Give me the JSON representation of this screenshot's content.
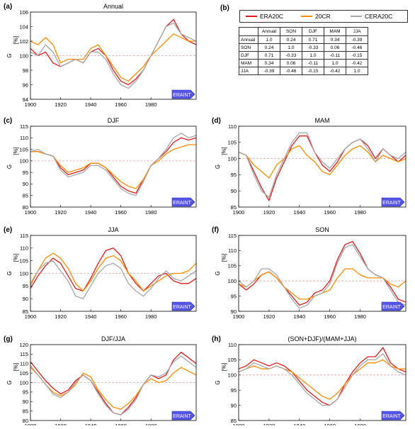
{
  "legend": {
    "items": [
      {
        "label": "ERA20C",
        "color": "#e31a1c"
      },
      {
        "label": "20CR",
        "color": "#ff8c00"
      },
      {
        "label": "CERA20C",
        "color": "#a6a6a6"
      }
    ]
  },
  "correlation_table": {
    "panel_label": "(b)",
    "columns": [
      "",
      "Annual",
      "SON",
      "DJF",
      "MAM",
      "JJA"
    ],
    "rows": [
      [
        "Annual",
        "1.0",
        "0.24",
        "0.71",
        "0.34",
        "-0.39"
      ],
      [
        "SON",
        "0.24",
        "1.0",
        "-0.33",
        "0.06",
        "-0.46"
      ],
      [
        "DJF",
        "0.71",
        "-0.33",
        "1.0",
        "-0.11",
        "-0.15"
      ],
      [
        "MAM",
        "0.34",
        "0.06",
        "-0.11",
        "1.0",
        "-0.42"
      ],
      [
        "JJA",
        "-0.39",
        "-0.46",
        "-0.15",
        "-0.42",
        "1.0"
      ]
    ]
  },
  "era_label": "ERAINT",
  "chart_data": [
    {
      "panel": "(a)",
      "type": "line",
      "title": "Annual",
      "ylabel_main": "G",
      "ylabel_note": "[%]",
      "ylim": [
        94,
        106
      ],
      "yticks": [
        94,
        96,
        98,
        100,
        102,
        104,
        106
      ],
      "xlim": [
        1900,
        2010
      ],
      "xticks": [
        1900,
        1920,
        1940,
        1960,
        1980
      ],
      "reference_line": 100,
      "x": [
        1900,
        1905,
        1910,
        1915,
        1920,
        1925,
        1930,
        1935,
        1940,
        1945,
        1950,
        1955,
        1960,
        1965,
        1970,
        1975,
        1980,
        1985,
        1990,
        1995,
        2000,
        2005,
        2010
      ],
      "series": [
        {
          "name": "ERA20C",
          "values": [
            101,
            100,
            100.5,
            99,
            98.5,
            99,
            99.5,
            99,
            100.5,
            101,
            100,
            98,
            96.5,
            96,
            96.8,
            98,
            100,
            102,
            104,
            105,
            103,
            102,
            101.5
          ]
        },
        {
          "name": "20CR",
          "values": [
            102,
            101.5,
            102.5,
            101.5,
            99,
            99.5,
            99.5,
            99.5,
            101,
            101.5,
            100,
            98.5,
            97,
            96.5,
            97.5,
            98.5,
            100,
            101,
            102,
            103,
            102.5,
            102,
            102
          ]
        },
        {
          "name": "CERA20C",
          "values": [
            100.5,
            100,
            101.5,
            100.5,
            98.5,
            99,
            99.5,
            99,
            100.5,
            100.5,
            99.5,
            97.5,
            96,
            95.5,
            96.5,
            98,
            100,
            102,
            104,
            104.5,
            103,
            102.5,
            102
          ]
        }
      ]
    },
    {
      "panel": "(c)",
      "type": "line",
      "title": "DJF",
      "ylabel_main": "G",
      "ylabel_note": "[%]",
      "ylim": [
        80,
        115
      ],
      "yticks": [
        80,
        85,
        90,
        95,
        100,
        105,
        110,
        115
      ],
      "xlim": [
        1900,
        2010
      ],
      "xticks": [
        1900,
        1920,
        1940,
        1960,
        1980
      ],
      "reference_line": 100,
      "x": [
        1900,
        1905,
        1910,
        1915,
        1920,
        1925,
        1930,
        1935,
        1940,
        1945,
        1950,
        1955,
        1960,
        1965,
        1970,
        1975,
        1980,
        1985,
        1990,
        1995,
        2000,
        2005,
        2010
      ],
      "series": [
        {
          "name": "ERA20C",
          "values": [
            104,
            104,
            103,
            102,
            97,
            94,
            95,
            96,
            99,
            99,
            97,
            93,
            89,
            87,
            86,
            92,
            98,
            101,
            104,
            108,
            110,
            109,
            110
          ]
        },
        {
          "name": "20CR",
          "values": [
            104,
            104,
            103,
            102,
            98,
            95,
            96,
            97,
            99,
            99,
            97,
            94,
            91,
            89,
            88,
            92,
            98,
            100,
            103,
            105,
            106,
            107,
            107
          ]
        },
        {
          "name": "CERA20C",
          "values": [
            104,
            105,
            103,
            102,
            96,
            93,
            94,
            95,
            98,
            98,
            96,
            92,
            88,
            86,
            85,
            91,
            98,
            101,
            105,
            110,
            112,
            110,
            111
          ]
        }
      ]
    },
    {
      "panel": "(d)",
      "type": "line",
      "title": "MAM",
      "ylabel_main": "G",
      "ylabel_note": "[%]",
      "ylim": [
        85,
        110
      ],
      "yticks": [
        85,
        90,
        95,
        100,
        105,
        110
      ],
      "xlim": [
        1900,
        2010
      ],
      "xticks": [
        1900,
        1920,
        1940,
        1960,
        1980
      ],
      "reference_line": 100,
      "x": [
        1900,
        1905,
        1910,
        1915,
        1920,
        1925,
        1930,
        1935,
        1940,
        1945,
        1950,
        1955,
        1960,
        1965,
        1970,
        1975,
        1980,
        1985,
        1990,
        1995,
        2000,
        2005,
        2010
      ],
      "series": [
        {
          "name": "ERA20C",
          "values": [
            102,
            101,
            96,
            91,
            87,
            94,
            99,
            104,
            107,
            107,
            102,
            98,
            96,
            99,
            103,
            105,
            106,
            104,
            100,
            103,
            101,
            99,
            101
          ]
        },
        {
          "name": "20CR",
          "values": [
            102,
            101,
            98,
            96,
            94,
            98,
            100,
            103,
            104,
            101,
            99,
            96,
            95,
            98,
            101,
            103,
            104,
            102,
            99,
            101,
            100,
            99,
            100
          ]
        },
        {
          "name": "CERA20C",
          "values": [
            102,
            101,
            95,
            90,
            88,
            95,
            100,
            105,
            108,
            108,
            102,
            99,
            97,
            100,
            103,
            105,
            106,
            103,
            99,
            103,
            101,
            100,
            102
          ]
        }
      ]
    },
    {
      "panel": "(e)",
      "type": "line",
      "title": "JJA",
      "ylabel_main": "G",
      "ylabel_note": "[%]",
      "ylim": [
        85,
        115
      ],
      "yticks": [
        85,
        90,
        95,
        100,
        105,
        110,
        115
      ],
      "xlim": [
        1900,
        2010
      ],
      "xticks": [
        1900,
        1920,
        1940,
        1960,
        1980
      ],
      "reference_line": 100,
      "x": [
        1900,
        1905,
        1910,
        1915,
        1920,
        1925,
        1930,
        1935,
        1940,
        1945,
        1950,
        1955,
        1960,
        1965,
        1970,
        1975,
        1980,
        1985,
        1990,
        1995,
        2000,
        2005,
        2010
      ],
      "series": [
        {
          "name": "ERA20C",
          "values": [
            94,
            99,
            103,
            106,
            104,
            99,
            94,
            93,
            98,
            104,
            109,
            110,
            107,
            100,
            96,
            93,
            96,
            99,
            100,
            97,
            96,
            96,
            98
          ]
        },
        {
          "name": "20CR",
          "values": [
            96,
            101,
            106,
            108,
            106,
            102,
            96,
            93,
            97,
            102,
            106,
            107,
            105,
            100,
            97,
            93,
            95,
            97,
            99,
            100,
            100,
            101,
            104
          ]
        },
        {
          "name": "CERA20C",
          "values": [
            95,
            101,
            104,
            105,
            101,
            97,
            91,
            90,
            95,
            100,
            103,
            104,
            102,
            96,
            93,
            91,
            94,
            98,
            101,
            98,
            97,
            99,
            101
          ]
        }
      ]
    },
    {
      "panel": "(f)",
      "type": "line",
      "title": "SON",
      "ylabel_main": "G",
      "ylabel_note": "[%]",
      "ylim": [
        90,
        115
      ],
      "yticks": [
        90,
        95,
        100,
        105,
        110,
        115
      ],
      "xlim": [
        1900,
        2010
      ],
      "xticks": [
        1900,
        1920,
        1940,
        1960,
        1980
      ],
      "reference_line": 100,
      "x": [
        1900,
        1905,
        1910,
        1915,
        1920,
        1925,
        1930,
        1935,
        1940,
        1945,
        1950,
        1955,
        1960,
        1965,
        1970,
        1975,
        1980,
        1985,
        1990,
        1995,
        2000,
        2005,
        2010
      ],
      "series": [
        {
          "name": "ERA20C",
          "values": [
            99,
            97,
            99,
            102,
            103,
            101,
            98,
            95,
            92,
            93,
            96,
            97,
            100,
            107,
            112,
            113,
            109,
            104,
            102,
            101,
            98,
            94,
            93
          ]
        },
        {
          "name": "20CR",
          "values": [
            99,
            98,
            100,
            102,
            103,
            101,
            98,
            96,
            94,
            94,
            95,
            96,
            97,
            101,
            104,
            104,
            102,
            101,
            101,
            101,
            99,
            98,
            100
          ]
        },
        {
          "name": "CERA20C",
          "values": [
            100,
            98,
            100,
            104,
            104,
            102,
            98,
            94,
            91,
            92,
            95,
            96,
            99,
            106,
            111,
            112,
            108,
            104,
            102,
            101,
            97,
            93,
            92
          ]
        }
      ]
    },
    {
      "panel": "(g)",
      "type": "line",
      "title": "DJF/JJA",
      "ylabel_main": "G",
      "ylabel_note": "[%]",
      "ylim": [
        80,
        120
      ],
      "yticks": [
        80,
        85,
        90,
        95,
        100,
        105,
        110,
        115,
        120
      ],
      "xlim": [
        1900,
        2010
      ],
      "xticks": [
        1900,
        1920,
        1940,
        1960,
        1980
      ],
      "reference_line": 100,
      "x": [
        1900,
        1905,
        1910,
        1915,
        1920,
        1925,
        1930,
        1935,
        1940,
        1945,
        1950,
        1955,
        1960,
        1965,
        1970,
        1975,
        1980,
        1985,
        1990,
        1995,
        2000,
        2005,
        2010
      ],
      "series": [
        {
          "name": "ERA20C",
          "values": [
            111,
            106,
            101,
            97,
            94,
            96,
            101,
            104,
            101,
            95,
            89,
            84,
            83,
            87,
            92,
            99,
            104,
            102,
            104,
            112,
            116,
            113,
            110
          ]
        },
        {
          "name": "20CR",
          "values": [
            108,
            104,
            99,
            95,
            93,
            95,
            99,
            105,
            103,
            96,
            91,
            87,
            86,
            89,
            93,
            99,
            102,
            100,
            101,
            105,
            108,
            106,
            104
          ]
        },
        {
          "name": "CERA20C",
          "values": [
            109,
            104,
            99,
            94,
            92,
            95,
            100,
            104,
            101,
            94,
            88,
            84,
            83,
            86,
            91,
            99,
            104,
            103,
            105,
            111,
            114,
            111,
            108
          ]
        }
      ]
    },
    {
      "panel": "(h)",
      "type": "line",
      "title": "(SON+DJF)/(MAM+JJA)",
      "ylabel_main": "G",
      "ylabel_note": "[%]",
      "ylim": [
        85,
        110
      ],
      "yticks": [
        85,
        90,
        95,
        100,
        105,
        110
      ],
      "xlim": [
        1900,
        2010
      ],
      "xticks": [
        1900,
        1920,
        1940,
        1960,
        1980
      ],
      "reference_line": 100,
      "x": [
        1900,
        1905,
        1910,
        1915,
        1920,
        1925,
        1930,
        1935,
        1940,
        1945,
        1950,
        1955,
        1960,
        1965,
        1970,
        1975,
        1980,
        1985,
        1990,
        1995,
        2000,
        2005,
        2010
      ],
      "series": [
        {
          "name": "ERA20C",
          "values": [
            102,
            103,
            105,
            104,
            103,
            104,
            103,
            101,
            98,
            95,
            93,
            91,
            90,
            92,
            97,
            101,
            104,
            106,
            106,
            109,
            104,
            102,
            101
          ]
        },
        {
          "name": "20CR",
          "values": [
            101,
            102,
            103,
            102,
            102,
            103,
            102,
            101,
            99,
            97,
            95,
            93,
            92,
            94,
            97,
            100,
            102,
            104,
            104,
            105,
            103,
            102,
            102
          ]
        },
        {
          "name": "CERA20C",
          "values": [
            101,
            102,
            104,
            103,
            102,
            103,
            102,
            100,
            97,
            94,
            92,
            90,
            90,
            92,
            96,
            100,
            103,
            105,
            105,
            107,
            103,
            101,
            100
          ]
        }
      ]
    }
  ]
}
